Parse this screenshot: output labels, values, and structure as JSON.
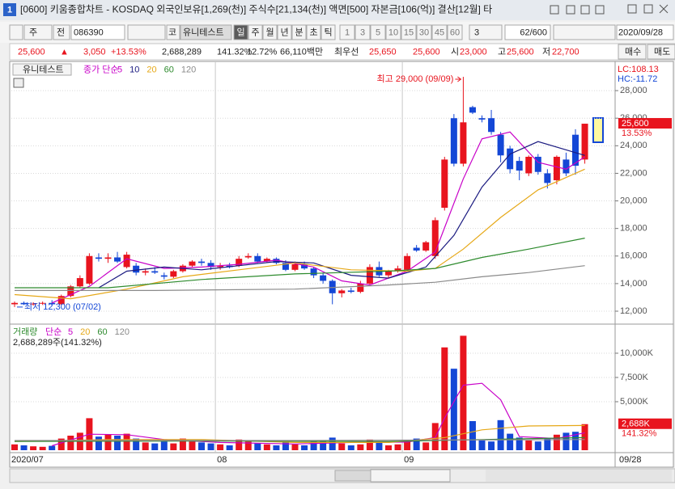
{
  "window": {
    "number": "1",
    "title": "[0600] 키움종합차트 - KOSDAQ 외국인보유[1,269(천)] 주식수[21,134(천)] 액면[500] 자본금[106(억)] 결산[12월] 타"
  },
  "toolbar": {
    "market": "주",
    "scope": "전",
    "code": "086390",
    "market_tag": "코",
    "name": "유니테스트",
    "periods": [
      "일",
      "주",
      "월",
      "년",
      "분",
      "초",
      "틱"
    ],
    "intervals": [
      "1",
      "3",
      "5",
      "10",
      "15",
      "30",
      "45",
      "60"
    ],
    "multiple": "3",
    "count": "62/600",
    "date": "2020/09/28"
  },
  "quote": {
    "price": "25,600",
    "arrow": "▲",
    "change": "3,050",
    "change_pct": "+13.53%",
    "volume": "2,688,289",
    "volume_ratio": "141.32%",
    "turnover": "12.72%",
    "amount": "66,110백만",
    "best_label": "최우선",
    "ask": "25,650",
    "bid": "25,600",
    "open_label": "시",
    "open": "23,000",
    "high_label": "고",
    "high": "25,600",
    "low_label": "저",
    "low": "22,700",
    "buy": "매수",
    "sell": "매도"
  },
  "price_chart": {
    "stock_label": "유니테스트",
    "legend_prefix": "종가 단순",
    "lc": "LC:108.13",
    "hc": "HC:-11.72",
    "max_label": "최고 29,000 (09/09)",
    "min_label": "최저 12,300 (07/02)",
    "last_tag": "25,600",
    "last_value": 25600,
    "last_pct": "13.53%",
    "up_color": "#e8141e",
    "down_color": "#1447d6",
    "ylim": [
      11120,
      30000
    ],
    "yticks": [
      {
        "value": 12000,
        "label": "12,000"
      },
      {
        "value": 14000,
        "label": "14,000"
      },
      {
        "value": 16000,
        "label": "16,000"
      },
      {
        "value": 18000,
        "label": "18,000"
      },
      {
        "value": 20000,
        "label": "20,000"
      },
      {
        "value": 22000,
        "label": "22,000"
      },
      {
        "value": 24000,
        "label": "24,000"
      },
      {
        "value": 26000,
        "label": "26,000"
      },
      {
        "value": 28000,
        "label": "28,000"
      }
    ],
    "candles": [
      [
        12500,
        12700,
        12300,
        12600
      ],
      [
        12600,
        12700,
        12450,
        12500
      ],
      [
        12500,
        12650,
        12400,
        12550
      ],
      [
        12550,
        12700,
        12450,
        12600
      ],
      [
        12600,
        12800,
        12400,
        12500
      ],
      [
        12500,
        13200,
        12450,
        13100
      ],
      [
        13100,
        13900,
        13000,
        13800
      ],
      [
        13800,
        14600,
        13700,
        14400
      ],
      [
        14000,
        16200,
        13900,
        16000
      ],
      [
        15900,
        16200,
        15600,
        15800
      ],
      [
        15800,
        16200,
        15500,
        15900
      ],
      [
        15900,
        16300,
        15500,
        15600
      ],
      [
        15200,
        16300,
        15100,
        16100
      ],
      [
        15300,
        15500,
        14600,
        14800
      ],
      [
        14800,
        15100,
        14600,
        14900
      ],
      [
        14900,
        15200,
        14700,
        14800
      ],
      [
        14600,
        14800,
        14300,
        14500
      ],
      [
        14500,
        15000,
        14400,
        14900
      ],
      [
        14900,
        15400,
        14800,
        15300
      ],
      [
        15300,
        15700,
        15200,
        15600
      ],
      [
        15600,
        15800,
        15300,
        15500
      ],
      [
        15500,
        15700,
        15000,
        15200
      ],
      [
        15200,
        15500,
        15000,
        15300
      ],
      [
        15300,
        15500,
        15100,
        15200
      ],
      [
        15300,
        16000,
        15200,
        15800
      ],
      [
        15900,
        16200,
        15800,
        16000
      ],
      [
        16000,
        16200,
        15500,
        15600
      ],
      [
        15600,
        15900,
        15500,
        15800
      ],
      [
        15800,
        15900,
        15400,
        15500
      ],
      [
        15500,
        15700,
        14900,
        15000
      ],
      [
        15000,
        15600,
        14900,
        15400
      ],
      [
        15400,
        15600,
        15000,
        15100
      ],
      [
        15100,
        15200,
        14400,
        14600
      ],
      [
        14600,
        14800,
        14000,
        14200
      ],
      [
        14200,
        14300,
        12500,
        13300
      ],
      [
        13300,
        13600,
        13000,
        13500
      ],
      [
        13500,
        13700,
        13300,
        13400
      ],
      [
        13400,
        14200,
        13300,
        14000
      ],
      [
        14000,
        15400,
        13900,
        15200
      ],
      [
        15200,
        15600,
        14500,
        14600
      ],
      [
        14600,
        15000,
        14400,
        14900
      ],
      [
        14900,
        15300,
        14800,
        15100
      ],
      [
        15000,
        16200,
        14900,
        16000
      ],
      [
        16600,
        16800,
        16300,
        16400
      ],
      [
        16400,
        17100,
        16300,
        17000
      ],
      [
        16000,
        18800,
        15800,
        18600
      ],
      [
        19500,
        23200,
        19300,
        23000
      ],
      [
        26000,
        26300,
        22500,
        22700
      ],
      [
        22700,
        29000,
        22500,
        25700
      ],
      [
        26800,
        26900,
        26300,
        26400
      ],
      [
        26000,
        26200,
        25700,
        25900
      ],
      [
        26000,
        26600,
        24800,
        25000
      ],
      [
        24800,
        25000,
        22800,
        23300
      ],
      [
        23800,
        24000,
        22000,
        22300
      ],
      [
        22900,
        23200,
        21500,
        22200
      ],
      [
        22000,
        23300,
        21800,
        23200
      ],
      [
        23200,
        23400,
        21900,
        22100
      ],
      [
        22000,
        22300,
        20900,
        21300
      ],
      [
        21500,
        23300,
        21200,
        23200
      ],
      [
        23000,
        23500,
        21800,
        22000
      ],
      [
        24800,
        25200,
        21900,
        22550
      ],
      [
        23000,
        25600,
        22700,
        25600
      ]
    ],
    "ma": [
      {
        "name": "5",
        "color": "#c800c8",
        "x": [
          4,
          8,
          12,
          16,
          20,
          24,
          28,
          32,
          35,
          38,
          42,
          45,
          48,
          50,
          53,
          56,
          59,
          61
        ],
        "values": [
          12600,
          13800,
          15800,
          15100,
          15200,
          15400,
          15700,
          15200,
          14200,
          13900,
          14900,
          16300,
          21600,
          24500,
          25000,
          22800,
          22300,
          23200
        ]
      },
      {
        "name": "10",
        "color": "#1a1a80",
        "x": [
          9,
          12,
          16,
          20,
          24,
          28,
          32,
          36,
          40,
          44,
          47,
          50,
          53,
          56,
          59,
          61
        ],
        "values": [
          13700,
          14900,
          15200,
          15000,
          15300,
          15600,
          15500,
          14600,
          14400,
          15200,
          17500,
          21000,
          23400,
          24300,
          23700,
          23300
        ]
      },
      {
        "name": "20",
        "color": "#e6a817",
        "x": [
          0,
          6,
          12,
          18,
          24,
          30,
          36,
          42,
          45,
          48,
          52,
          56,
          59,
          61
        ],
        "values": [
          13200,
          12900,
          13600,
          14500,
          15000,
          15500,
          15000,
          14900,
          15100,
          16500,
          18800,
          20800,
          21700,
          22300
        ]
      },
      {
        "name": "60",
        "color": "#2e8b2e",
        "x": [
          0,
          10,
          20,
          30,
          40,
          45,
          50,
          55,
          61
        ],
        "values": [
          13700,
          13700,
          14300,
          14700,
          14900,
          15100,
          15900,
          16500,
          17300
        ]
      },
      {
        "name": "120",
        "color": "#8a8a8a",
        "x": [
          0,
          15,
          30,
          40,
          45,
          50,
          55,
          61
        ],
        "values": [
          13500,
          13500,
          13600,
          13900,
          14100,
          14500,
          14800,
          15300
        ]
      }
    ]
  },
  "volume_chart": {
    "legend_title": "거래량",
    "legend_prefix": "단순",
    "summary": "2,688,289주(141.32%)",
    "last_tag": "2,688K",
    "last_pct": "141.32%",
    "ylim": [
      0,
      12750000
    ],
    "yticks": [
      {
        "value": 5000000,
        "label": "5,000K"
      },
      {
        "value": 7500000,
        "label": "7,500K"
      },
      {
        "value": 10000000,
        "label": "10,000K"
      }
    ],
    "values": [
      600000,
      500000,
      400000,
      350000,
      450000,
      1200000,
      1500000,
      1800000,
      3300000,
      1400000,
      1600000,
      1500000,
      1700000,
      1200000,
      800000,
      700000,
      900000,
      700000,
      1200000,
      900000,
      800000,
      700000,
      600000,
      500000,
      1100000,
      900000,
      700000,
      600000,
      500000,
      800000,
      600000,
      500000,
      900000,
      1000000,
      1300000,
      700000,
      500000,
      600000,
      1100000,
      900000,
      500000,
      600000,
      1000000,
      1200000,
      800000,
      2800000,
      10600000,
      8400000,
      11800000,
      3000000,
      1000000,
      900000,
      3100000,
      1700000,
      1300000,
      1000000,
      900000,
      1200000,
      1600000,
      1800000,
      1900000,
      2688289
    ],
    "ma": [
      {
        "name": "5",
        "color": "#c800c8",
        "x": [
          4,
          8,
          12,
          16,
          22,
          30,
          36,
          42,
          45,
          46,
          48,
          50,
          52,
          54,
          58,
          61
        ],
        "values": [
          460000,
          1650000,
          1600000,
          1100000,
          800000,
          640000,
          800000,
          840000,
          1300000,
          3300000,
          6700000,
          6900000,
          5200000,
          1400000,
          1200000,
          1800000
        ]
      },
      {
        "name": "20",
        "color": "#e6a817",
        "x": [
          0,
          10,
          20,
          30,
          40,
          46,
          50,
          55,
          61
        ],
        "values": [
          900000,
          1100000,
          1100000,
          800000,
          800000,
          1300000,
          2100000,
          2500000,
          2550000
        ]
      },
      {
        "name": "60",
        "color": "#2e8b2e",
        "x": [
          0,
          20,
          40,
          50,
          61
        ],
        "values": [
          900000,
          950000,
          900000,
          1100000,
          1300000
        ]
      },
      {
        "name": "120",
        "color": "#8a8a8a",
        "x": [
          0,
          30,
          61
        ],
        "values": [
          1000000,
          1000000,
          1100000
        ]
      }
    ]
  },
  "x_axis": {
    "labels": [
      "2020/07",
      "08",
      "09",
      "09/28"
    ]
  }
}
